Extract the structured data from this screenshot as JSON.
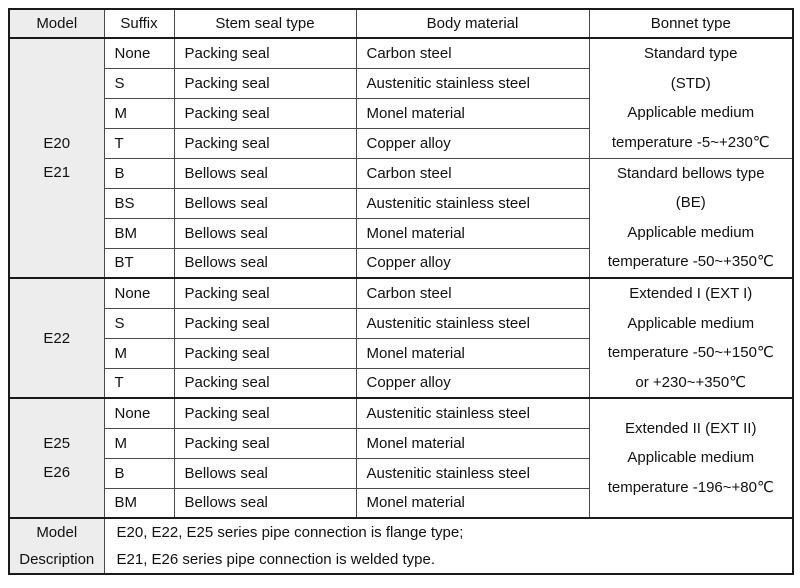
{
  "table": {
    "headers": [
      "Model",
      "Suffix",
      "Stem seal type",
      "Body material",
      "Bonnet type"
    ],
    "groups": [
      {
        "model_lines": [
          "E20",
          "E21"
        ],
        "rows": [
          {
            "suffix": "None",
            "stem_seal": "Packing seal",
            "body_material": "Carbon steel"
          },
          {
            "suffix": "S",
            "stem_seal": "Packing seal",
            "body_material": "Austenitic stainless steel"
          },
          {
            "suffix": "M",
            "stem_seal": "Packing seal",
            "body_material": "Monel material"
          },
          {
            "suffix": "T",
            "stem_seal": "Packing seal",
            "body_material": "Copper alloy"
          },
          {
            "suffix": "B",
            "stem_seal": "Bellows seal",
            "body_material": "Carbon steel"
          },
          {
            "suffix": "BS",
            "stem_seal": "Bellows seal",
            "body_material": "Austenitic stainless steel"
          },
          {
            "suffix": "BM",
            "stem_seal": "Bellows seal",
            "body_material": "Monel material"
          },
          {
            "suffix": "BT",
            "stem_seal": "Bellows seal",
            "body_material": "Copper alloy"
          }
        ],
        "bonnet_cells": [
          {
            "span": 4,
            "lines": [
              "Standard type",
              "(STD)",
              "Applicable medium",
              "temperature -5~+230℃"
            ]
          },
          {
            "span": 4,
            "lines": [
              "Standard bellows type",
              "(BE)",
              "Applicable medium",
              "temperature -50~+350℃"
            ]
          }
        ]
      },
      {
        "model_lines": [
          "E22"
        ],
        "rows": [
          {
            "suffix": "None",
            "stem_seal": "Packing seal",
            "body_material": "Carbon steel"
          },
          {
            "suffix": "S",
            "stem_seal": "Packing seal",
            "body_material": "Austenitic stainless steel"
          },
          {
            "suffix": "M",
            "stem_seal": "Packing seal",
            "body_material": "Monel material"
          },
          {
            "suffix": "T",
            "stem_seal": "Packing seal",
            "body_material": "Copper alloy"
          }
        ],
        "bonnet_cells": [
          {
            "span": 4,
            "lines": [
              "Extended I (EXT I)",
              "Applicable medium",
              "temperature -50~+150℃",
              "or +230~+350℃"
            ]
          }
        ]
      },
      {
        "model_lines": [
          "E25",
          "E26"
        ],
        "rows": [
          {
            "suffix": "None",
            "stem_seal": "Packing seal",
            "body_material": "Austenitic stainless steel"
          },
          {
            "suffix": "M",
            "stem_seal": "Packing seal",
            "body_material": "Monel material"
          },
          {
            "suffix": "B",
            "stem_seal": "Bellows seal",
            "body_material": "Austenitic stainless steel"
          },
          {
            "suffix": "BM",
            "stem_seal": "Bellows seal",
            "body_material": "Monel material"
          }
        ],
        "bonnet_cells": [
          {
            "span": 4,
            "lines": [
              "Extended II (EXT II)",
              "Applicable medium",
              "temperature -196~+80℃"
            ]
          }
        ]
      }
    ],
    "footer": {
      "label_lines": [
        "Model",
        "Description"
      ],
      "text_lines": [
        "E20, E22, E25 series pipe connection is flange type;",
        "E21, E26 series pipe connection is welded type."
      ]
    }
  },
  "colors": {
    "model_column_bg": "#ededed",
    "inner_border": "#4a4a4a",
    "outer_border": "#1a1a1a",
    "text": "#111111"
  }
}
